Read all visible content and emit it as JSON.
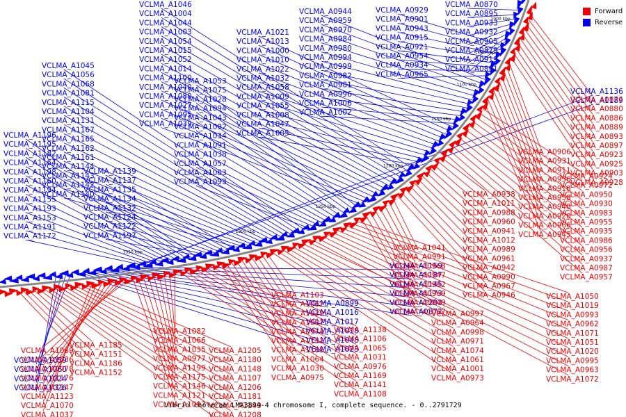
{
  "title": "Vibrio cholerae LMA3894-4 chromosome I, complete sequence. - 0..2791729",
  "legend": [
    {
      "label": "Forward",
      "color": "#ee0000"
    },
    {
      "label": "Reverse",
      "color": "#0000ee"
    }
  ],
  "ticks": [
    "1000 kbp",
    "1050 kbp",
    "1100 kbp",
    "1150 kbp",
    "1200 kbp",
    "1250 kbp",
    "1300 kbp",
    "1350 kbp"
  ],
  "reverse_labels": [
    "VCLMA_A0870",
    "VCLMA_A0895",
    "VCLMA_A0933",
    "VCLMA_A0932",
    "VCLMA_A0905",
    "VCLMA_A0879",
    "VCLMA_A0919",
    "VCLMA_A0891",
    "VCLMA_A0929",
    "VCLMA_A0901",
    "VCLMA_A0943",
    "VCLMA_A0915",
    "VCLMA_A0921",
    "VCLMA_A0954",
    "VCLMA_A0934",
    "VCLMA_A0965",
    "VCLMA_A0944",
    "VCLMA_A0959",
    "VCLMA_A0970",
    "VCLMA_A0984",
    "VCLMA_A0980",
    "VCLMA_A0994",
    "VCLMA_A0999",
    "VCLMA_A0982",
    "VCLMA_A0981",
    "VCLMA_A0996",
    "VCLMA_A1006",
    "VCLMA_A1002",
    "VCLMA_A1021",
    "VCLMA_A1013",
    "VCLMA_A1000",
    "VCLMA_A1010",
    "VCLMA_A1022",
    "VCLMA_A1032",
    "VCLMA_A1058",
    "VCLMA_A1009",
    "VCLMA_A1055",
    "VCLMA_A1008",
    "VCLMA_A1047",
    "VCLMA_A1005",
    "VCLMA_A1046",
    "VCLMA_A1004",
    "VCLMA_A1044",
    "VCLMA_A1003",
    "VCLMA_A1054",
    "VCLMA_A1015",
    "VCLMA_A1052",
    "VCLMA_A1014",
    "VCLMA_A1100",
    "VCLMA_A1040",
    "VCLMA_A1080",
    "VCLMA_A1027",
    "VCLMA_A1095",
    "VCLMA_A1039",
    "VCLMA_A1053",
    "VCLMA_A1075",
    "VCLMA_A1028",
    "VCLMA_A1094",
    "VCLMA_A1043",
    "VCLMA_A1092",
    "VCLMA_A1034",
    "VCLMA_A1091",
    "VCLMA_A1038",
    "VCLMA_A1057",
    "VCLMA_A1063",
    "VCLMA_A1093",
    "VCLMA_A1045",
    "VCLMA_A1056",
    "VCLMA_A1068",
    "VCLMA_A1081",
    "VCLMA_A1115",
    "VCLMA_A1104",
    "VCLMA_A1131",
    "VCLMA_A1167",
    "VCLMA_A1165",
    "VCLMA_A1162",
    "VCLMA_A1161",
    "VCLMA_A1144",
    "VCLMA_A1143",
    "VCLMA_A1142",
    "VCLMA_A1140",
    "VCLMA_A1139",
    "VCLMA_A1137",
    "VCLMA_A1135",
    "VCLMA_A1134",
    "VCLMA_A1132",
    "VCLMA_A1124",
    "VCLMA_A1122",
    "VCLMA_A1197",
    "VCLMA_A1196",
    "VCLMA_A1195",
    "VCLMA_A1182",
    "VCLMA_A1164",
    "VCLMA_A1198",
    "VCLMA_A1160",
    "VCLMA_A1194",
    "VCLMA_A1155",
    "VCLMA_A1193",
    "VCLMA_A1153",
    "VCLMA_A1191",
    "VCLMA_A1172",
    "VCLMA_A1136",
    "VCLMA_A1189",
    "VCLMA_A1159",
    "VCLMA_A1187",
    "VCLMA_A1145",
    "VCLMA_A1173",
    "VCLMA_A1203",
    "VCLMA_A0872",
    "VCLMA_A0899",
    "VCLMA_A1016",
    "VCLMA_A1017",
    "VCLMA_A1018",
    "VCLMA_A1048",
    "VCLMA_A1023",
    "VCLMA_A1059",
    "VCLMA_A1060",
    "VCLMA_A1024",
    "VCLMA_A1026",
    "VCLMA_A1073",
    "VCLMA_A1076",
    "VCLMA_A1078",
    "VCLMA_A1101",
    "VCLMA_A1200",
    "VCLMA_A1209",
    "VCLMA_A1098",
    "VCLMA_A1077"
  ],
  "forward_labels": [
    "VCLMA_A0876",
    "VCLMA_A0880",
    "VCLMA_A0886",
    "VCLMA_A0889",
    "VCLMA_A0893",
    "VCLMA_A0897",
    "VCLMA_A0923",
    "VCLMA_A0925",
    "VCLMA_A0903",
    "VCLMA_A0928",
    "VCLMA_A0906",
    "VCLMA_A0931",
    "VCLMA_A0911",
    "VCLMA_A0936",
    "VCLMA_A0916",
    "VCLMA_A0958",
    "VCLMA_A0940",
    "VCLMA_A0920",
    "VCLMA_A0966",
    "VCLMA_A0945",
    "VCLMA_A0924",
    "VCLMA_A0972",
    "VCLMA_A0950",
    "VCLMA_A0930",
    "VCLMA_A0983",
    "VCLMA_A0955",
    "VCLMA_A0935",
    "VCLMA_A0986",
    "VCLMA_A0956",
    "VCLMA_A0937",
    "VCLMA_A0987",
    "VCLMA_A0957",
    "VCLMA_A0938",
    "VCLMA_A1011",
    "VCLMA_A0988",
    "VCLMA_A0960",
    "VCLMA_A0941",
    "VCLMA_A1012",
    "VCLMA_A0989",
    "VCLMA_A0961",
    "VCLMA_A0942",
    "VCLMA_A0990",
    "VCLMA_A0967",
    "VCLMA_A0946",
    "VCLMA_A1041",
    "VCLMA_A0991",
    "VCLMA_A0968",
    "VCLMA_A0947",
    "VCLMA_A0992",
    "VCLMA_A0969",
    "VCLMA_A0949",
    "VCLMA_A1067",
    "VCLMA_A1050",
    "VCLMA_A1019",
    "VCLMA_A0993",
    "VCLMA_A0962",
    "VCLMA_A1071",
    "VCLMA_A1051",
    "VCLMA_A1020",
    "VCLMA_A0995",
    "VCLMA_A0963",
    "VCLMA_A1072",
    "VCLMA_A0997",
    "VCLMA_A0964",
    "VCLMA_A0998",
    "VCLMA_A0971",
    "VCLMA_A1074",
    "VCLMA_A1061",
    "VCLMA_A1001",
    "VCLMA_A0973",
    "VCLMA_A1103",
    "VCLMA_A1062",
    "VCLMA_A1029",
    "VCLMA_A1007",
    "VCLMA_A0974",
    "VCLMA_A1133",
    "VCLMA_A1105",
    "VCLMA_A1064",
    "VCLMA_A1030",
    "VCLMA_A0975",
    "VCLMA_A1138",
    "VCLMA_A1106",
    "VCLMA_A1065",
    "VCLMA_A1031",
    "VCLMA_A0976",
    "VCLMA_A1169",
    "VCLMA_A1141",
    "VCLMA_A1108",
    "VCLMA_A1082",
    "VCLMA_A1066",
    "VCLMA_A1035",
    "VCLMA_A0977",
    "VCLMA_A1199",
    "VCLMA_A1175",
    "VCLMA_A1146",
    "VCLMA_A1121",
    "VCLMA_A1097",
    "VCLMA_A1069",
    "VCLMA_A1036",
    "VCLMA_A0978",
    "VCLMA_A1176",
    "VCLMA_A1147",
    "VCLMA_A1123",
    "VCLMA_A1070",
    "VCLMA_A1037",
    "VCLMA_A1205",
    "VCLMA_A1180",
    "VCLMA_A1148",
    "VCLMA_A1107",
    "VCLMA_A1206",
    "VCLMA_A1181",
    "VCLMA_A1149",
    "VCLMA_A1208",
    "VCLMA_A1183",
    "VCLMA_A1150",
    "VCLMA_A1185",
    "VCLMA_A1151",
    "VCLMA_A1186",
    "VCLMA_A1152"
  ]
}
